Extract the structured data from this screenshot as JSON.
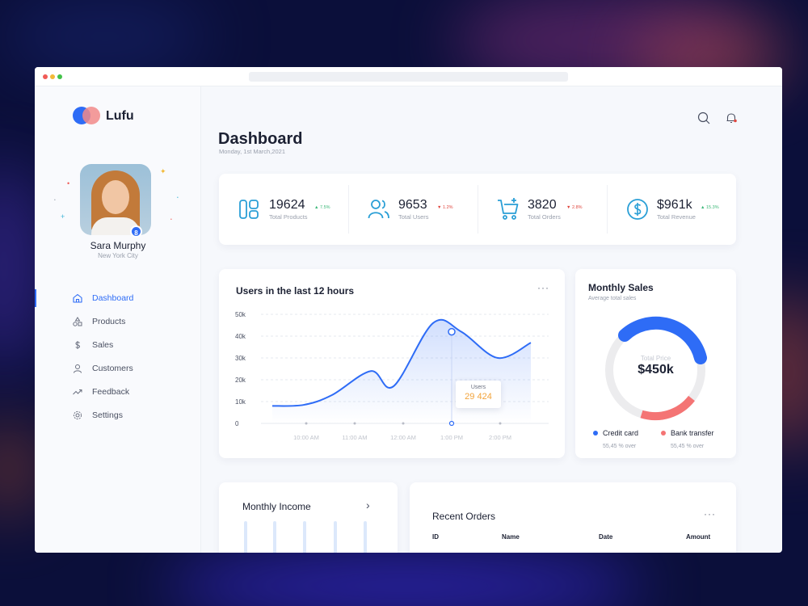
{
  "app": {
    "name": "Lufu"
  },
  "user": {
    "name": "Sara Murphy",
    "city": "New York City",
    "badge": "8"
  },
  "nav": {
    "items": [
      {
        "label": "Dashboard",
        "icon": "home-icon",
        "active": true
      },
      {
        "label": "Products",
        "icon": "shapes-icon",
        "active": false
      },
      {
        "label": "Sales",
        "icon": "dollar-icon",
        "active": false
      },
      {
        "label": "Customers",
        "icon": "user-icon",
        "active": false
      },
      {
        "label": "Feedback",
        "icon": "trending-icon",
        "active": false
      },
      {
        "label": "Settings",
        "icon": "gear-icon",
        "active": false
      }
    ]
  },
  "header": {
    "title": "Dashboard",
    "date": "Monday, 1st March,2021"
  },
  "stats": [
    {
      "value": "19624",
      "trend": "7.5%",
      "direction": "up",
      "label": "Total Products",
      "icon": "products-icon"
    },
    {
      "value": "9653",
      "trend": "1.2%",
      "direction": "down",
      "label": "Total Users",
      "icon": "users-icon"
    },
    {
      "value": "3820",
      "trend": "2.8%",
      "direction": "down",
      "label": "Total Orders",
      "icon": "cart-icon"
    },
    {
      "value": "$961k",
      "trend": "15.3%",
      "direction": "up",
      "label": "Total Revenue",
      "icon": "dollar-circle-icon"
    }
  ],
  "colors": {
    "accent": "#2e6cf6",
    "up": "#3cb878",
    "down": "#e0473f",
    "secondary": "#f47474",
    "tooltip": "#f2a33a"
  },
  "users_chart": {
    "title": "Users in the last 12 hours",
    "tooltip": {
      "label": "Users",
      "value": "29 424"
    },
    "chart_data": {
      "type": "line",
      "y_ticks": [
        "50k",
        "40k",
        "30k",
        "20k",
        "10k",
        "0"
      ],
      "x_ticks": [
        "10:00 AM",
        "11:00 AM",
        "12:00 AM",
        "1:00 PM",
        "2:00 PM"
      ],
      "ylim": [
        0,
        50000
      ],
      "series": [
        {
          "values": [
            8000,
            8500,
            13000,
            24000,
            17000,
            46000,
            42000,
            30000,
            37000
          ]
        }
      ]
    }
  },
  "monthly_sales": {
    "title": "Monthly Sales",
    "subtitle": "Average total sales",
    "center_label": "Total Price",
    "center_value": "$450k",
    "legend": [
      {
        "name": "Credit card",
        "sub": "55,45 % over",
        "color": "#2e6cf6"
      },
      {
        "name": "Bank transfer",
        "sub": "55,45 % over",
        "color": "#f47474"
      }
    ]
  },
  "monthly_income": {
    "title": "Monthly Income"
  },
  "recent_orders": {
    "title": "Recent Orders",
    "columns": [
      "ID",
      "Name",
      "Date",
      "Amount"
    ]
  }
}
